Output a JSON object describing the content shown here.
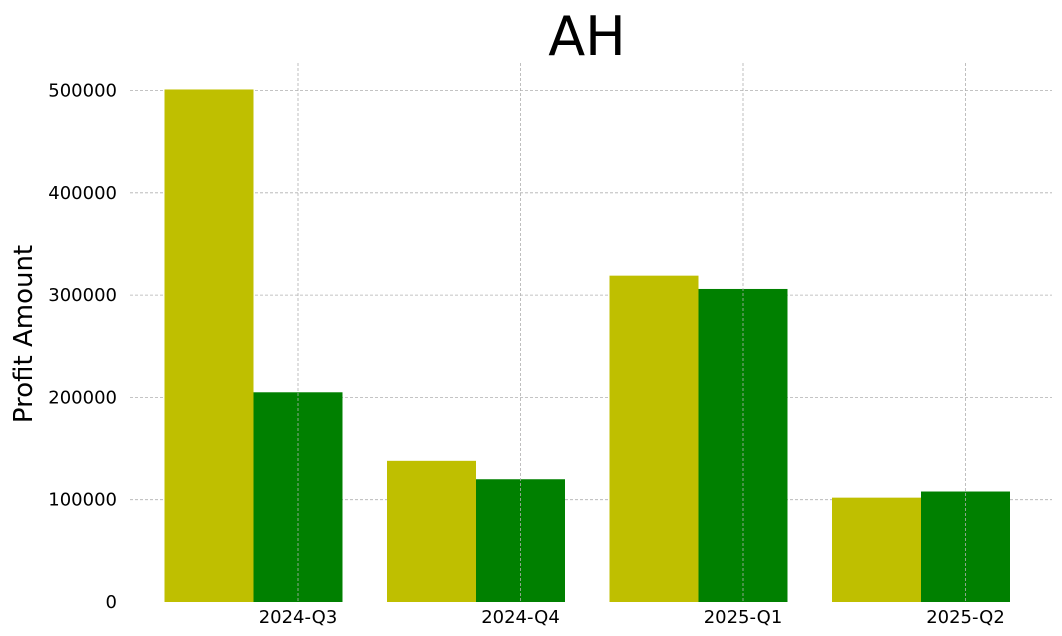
{
  "chart_data": {
    "type": "bar",
    "title": "AH",
    "xlabel": "",
    "ylabel": "Profit Amount",
    "categories": [
      "2024-Q3",
      "2024-Q4",
      "2025-Q1",
      "2025-Q2"
    ],
    "series": [
      {
        "values": [
          501000,
          138000,
          319000,
          102000
        ],
        "color": "#bfbf00"
      },
      {
        "values": [
          205000,
          120000,
          306000,
          108000
        ],
        "color": "#008000"
      }
    ],
    "ylim": [
      0,
      526000
    ],
    "yticks": [
      0,
      100000,
      200000,
      300000,
      400000,
      500000
    ],
    "grid": true,
    "legend": "none"
  }
}
